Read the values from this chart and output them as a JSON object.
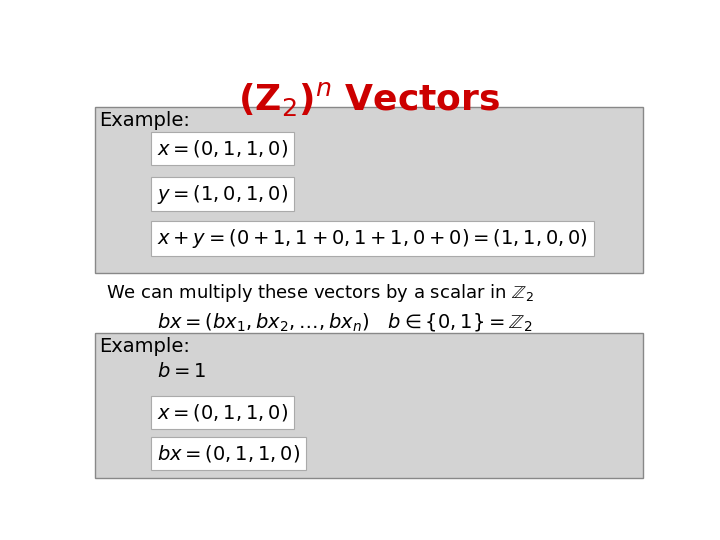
{
  "title": "(Z$_2$)$^n$ Vectors",
  "title_color": "#cc0000",
  "title_fontsize": 26,
  "title_fontweight": "bold",
  "bg_color": "#ffffff",
  "box_color": "#d3d3d3",
  "box_edge_color": "#888888",
  "text_color": "#000000",
  "example1_label": "Example:",
  "example1_lines": [
    "$x = (0, 1, 1, 0)$",
    "$y = (1, 0, 1, 0)$",
    "$x + y = (0+1, 1+0, 1+1, 0+0) = (1, 1, 0, 0)$"
  ],
  "middle_text": "We can multiply these vectors by a scalar in $\\mathbb{Z}_2$",
  "formula_line": "$bx = (bx_1, bx_2, \\ldots, bx_n) \\quad b \\in \\{0,1\\} = \\mathbb{Z}_2$",
  "example2_label": "Example:",
  "example2_lines_nobox": [
    "$b = 1$"
  ],
  "example2_lines_box": [
    "$x = (0, 1, 1, 0)$",
    "$bx = (0, 1, 1, 0)$"
  ],
  "label_fontsize": 14,
  "math_fontsize": 14,
  "body_fontsize": 13
}
